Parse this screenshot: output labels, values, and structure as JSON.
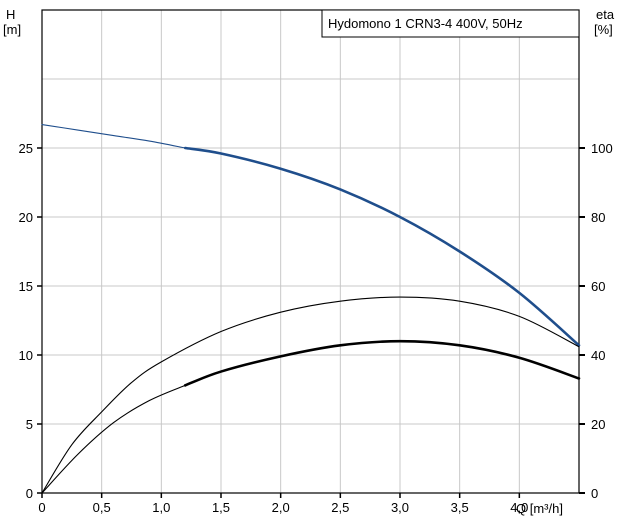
{
  "chart_data": {
    "type": "line",
    "title": "Hydomono 1 CRN3-4 400V, 50Hz",
    "grid": true,
    "x_axis": {
      "label": "Q [m³/h]",
      "range": [
        0,
        4.5
      ],
      "ticks": [
        0,
        0.5,
        1.0,
        1.5,
        2.0,
        2.5,
        3.0,
        3.5,
        4.0
      ],
      "tick_labels": [
        "0",
        "0,5",
        "1,0",
        "1,5",
        "2,0",
        "2,5",
        "3,0",
        "3,5",
        "4,0"
      ]
    },
    "y_axis_left": {
      "label_line1": "H",
      "label_line2": "[m]",
      "range": [
        0,
        35
      ],
      "ticks": [
        0,
        5,
        10,
        15,
        20,
        25
      ],
      "tick_labels": [
        "0",
        "5",
        "10",
        "15",
        "20",
        "25"
      ]
    },
    "y_axis_right": {
      "label_line1": "eta",
      "label_line2": "[%]",
      "range": [
        0,
        140
      ],
      "ticks": [
        0,
        20,
        40,
        60,
        80,
        100
      ],
      "tick_labels": [
        "0",
        "20",
        "40",
        "60",
        "80",
        "100"
      ]
    },
    "series": [
      {
        "id": "head",
        "axis": "left",
        "color": "#1f4e8c",
        "segments": [
          {
            "weight": "thin",
            "x": [
              0,
              0.3,
              0.6,
              0.9,
              1.2
            ],
            "y": [
              26.7,
              26.3,
              25.9,
              25.5,
              25.0
            ]
          },
          {
            "weight": "thick",
            "x": [
              1.2,
              1.5,
              2.0,
              2.5,
              3.0,
              3.5,
              4.0,
              4.5
            ],
            "y": [
              25.0,
              24.6,
              23.5,
              22.0,
              20.0,
              17.5,
              14.5,
              10.7
            ]
          }
        ]
      },
      {
        "id": "efficiency-max",
        "axis": "right",
        "color": "#000000",
        "segments": [
          {
            "weight": "thin",
            "x": [
              0,
              0.25,
              0.5,
              0.75,
              1.0,
              1.5,
              2.0,
              2.5,
              3.0,
              3.5,
              4.0,
              4.5
            ],
            "y": [
              0,
              14,
              23.5,
              32,
              38,
              46.8,
              52.4,
              55.6,
              56.8,
              55.6,
              51.2,
              42.4
            ]
          }
        ]
      },
      {
        "id": "efficiency",
        "axis": "right",
        "color": "#000000",
        "segments": [
          {
            "weight": "thin",
            "x": [
              0,
              0.3,
              0.6,
              0.9,
              1.2
            ],
            "y": [
              0,
              11.2,
              20.4,
              26.8,
              31.2
            ]
          },
          {
            "weight": "thick",
            "x": [
              1.2,
              1.5,
              2.0,
              2.5,
              3.0,
              3.5,
              4.0,
              4.5
            ],
            "y": [
              31.2,
              35.2,
              39.6,
              42.8,
              44.0,
              42.8,
              39.2,
              33.2
            ]
          }
        ]
      }
    ]
  }
}
